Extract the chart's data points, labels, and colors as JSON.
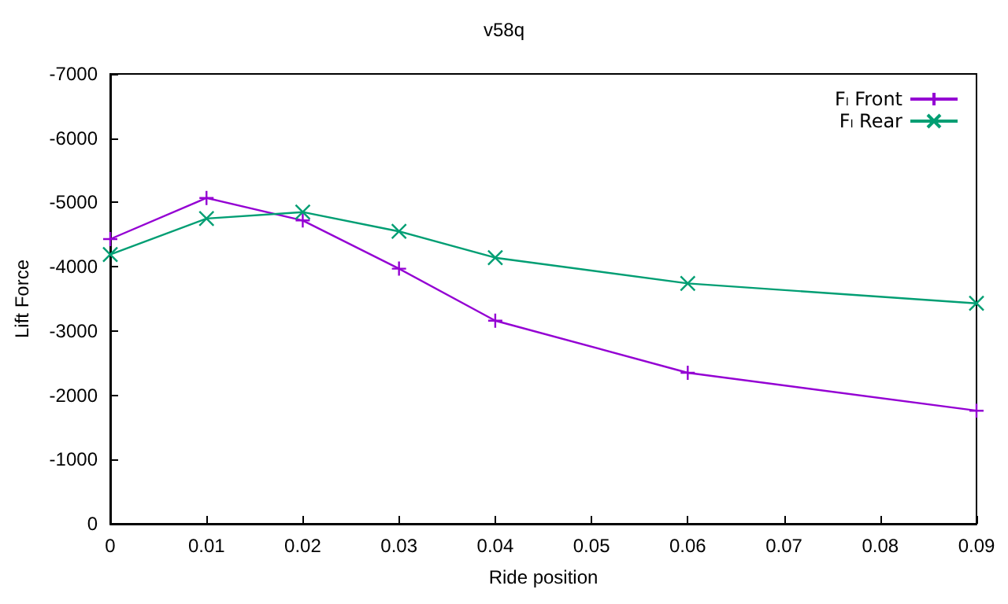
{
  "chart_data": {
    "type": "line",
    "title": "v58q",
    "xlabel": "Ride position",
    "ylabel": "Lift Force",
    "x": [
      0,
      0.01,
      0.02,
      0.03,
      0.04,
      0.06,
      0.09
    ],
    "series": [
      {
        "name": "Fₗ Front",
        "color": "#9400d3",
        "values": [
          -4430,
          -5070,
          -4720,
          -3970,
          -3160,
          -2350,
          -1760
        ]
      },
      {
        "name": "Fₗ Rear",
        "color": "#009e73",
        "values": [
          -4190,
          -4750,
          -4850,
          -4550,
          -4140,
          -3740,
          -3430
        ]
      }
    ],
    "xlim": [
      0,
      0.09
    ],
    "xticks": [
      0,
      0.01,
      0.02,
      0.03,
      0.04,
      0.05,
      0.06,
      0.07,
      0.08,
      0.09
    ],
    "ylim": [
      0,
      -7000
    ],
    "yticks": [
      0,
      -1000,
      -2000,
      -3000,
      -4000,
      -5000,
      -6000,
      -7000
    ],
    "grid": false,
    "legend": "top right",
    "marker": "cross",
    "line_style": "solid"
  }
}
